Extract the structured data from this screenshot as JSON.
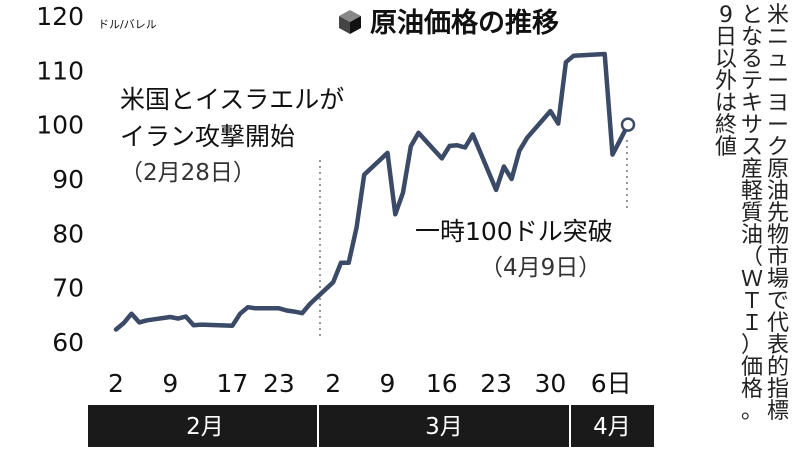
{
  "chart_data": {
    "type": "line",
    "title": "原油価格の推移",
    "unit": "ドル/バレル",
    "ylim": [
      60,
      120
    ],
    "yticks": [
      "60",
      "70",
      "80",
      "90",
      "100",
      "110",
      "120"
    ],
    "xticks": [
      "2",
      "9",
      "17",
      "23",
      "2",
      "9",
      "16",
      "23",
      "30",
      "6日"
    ],
    "months": [
      "2月",
      "3月",
      "4月"
    ],
    "series": [
      {
        "x": [
          "2026-02-02",
          "2026-02-03",
          "2026-02-04",
          "2026-02-05",
          "2026-02-06",
          "2026-02-09",
          "2026-02-10",
          "2026-02-11",
          "2026-02-12",
          "2026-02-13",
          "2026-02-17",
          "2026-02-18",
          "2026-02-19",
          "2026-02-20",
          "2026-02-23",
          "2026-02-24",
          "2026-02-25",
          "2026-02-26",
          "2026-02-27",
          "2026-03-02",
          "2026-03-03",
          "2026-03-04",
          "2026-03-05",
          "2026-03-06",
          "2026-03-09",
          "2026-03-10",
          "2026-03-11",
          "2026-03-12",
          "2026-03-13",
          "2026-03-16",
          "2026-03-17",
          "2026-03-18",
          "2026-03-19",
          "2026-03-20",
          "2026-03-23",
          "2026-03-24",
          "2026-03-25",
          "2026-03-26",
          "2026-03-27",
          "2026-03-30",
          "2026-03-31",
          "2026-04-01",
          "2026-04-02",
          "2026-04-06",
          "2026-04-07",
          "2026-04-08",
          "2026-04-09"
        ],
        "values": [
          62.3,
          63.5,
          65.2,
          63.6,
          64.0,
          64.6,
          64.3,
          64.7,
          63.1,
          63.2,
          63.0,
          65.2,
          66.4,
          66.2,
          66.2,
          65.8,
          65.6,
          65.3,
          67.0,
          71.0,
          74.6,
          74.6,
          81.0,
          90.8,
          94.8,
          83.5,
          87.5,
          96.0,
          98.5,
          93.8,
          96.1,
          96.2,
          95.8,
          98.2,
          88.0,
          92.3,
          90.0,
          95.2,
          97.6,
          102.5,
          100.2,
          111.5,
          112.7,
          113.0,
          94.5,
          97.2,
          100.0
        ]
      }
    ],
    "annotations": [
      {
        "text": "米国とイスラエルが",
        "sub": ""
      },
      {
        "text": "イラン攻撃開始",
        "sub": "（2月28日）"
      },
      {
        "text": "一時100ドル突破",
        "sub": "（4月9日）"
      }
    ],
    "note": "米ニューヨーク原油先物市場で代表的指標となるテキサス産軽質油（ＷＴＩ）価格。9日以外は終値"
  },
  "colors": {
    "line": "#3b4a66",
    "text": "#111111",
    "bar": "#1a1a1a",
    "dash": "#777777"
  },
  "icons": {
    "title": "cube-icon"
  }
}
